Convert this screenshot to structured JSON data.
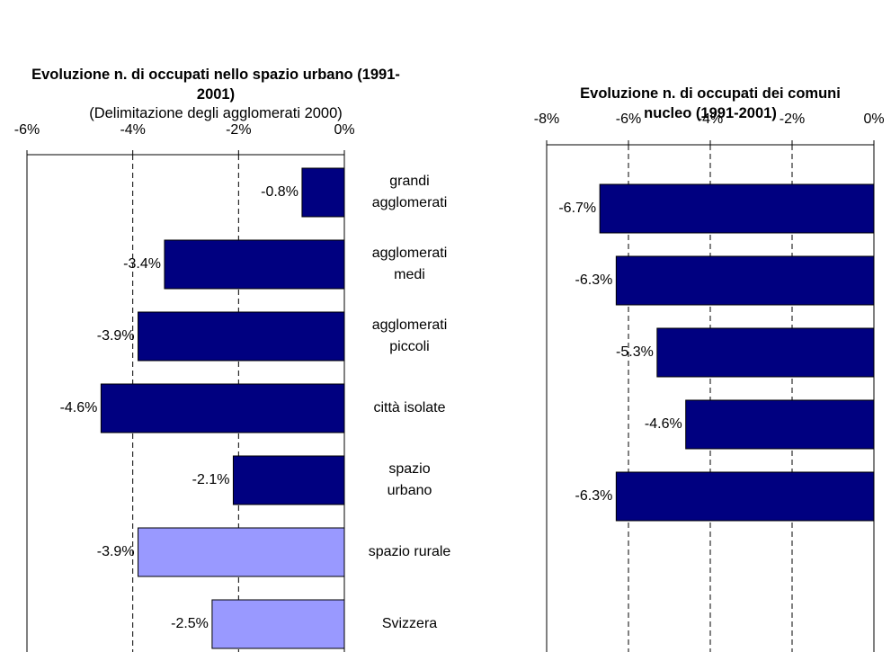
{
  "chart_data": [
    {
      "type": "bar",
      "title": "Evoluzione n. di occupati nello spazio urbano (1991-2001)",
      "subtitle": "(Delimitazione degli agglomerati 2000)",
      "categories": [
        "grandi agglomerati",
        "agglomerati medi",
        "agglomerati piccoli",
        "città isolate",
        "spazio urbano",
        "spazio rurale",
        "Svizzera"
      ],
      "values": [
        -0.8,
        -3.4,
        -3.9,
        -4.6,
        -2.1,
        -3.9,
        -2.5
      ],
      "value_labels": [
        "-0.8%",
        "-3.4%",
        "-3.9%",
        "-4.6%",
        "-2.1%",
        "-3.9%",
        "-2.5%"
      ],
      "colors": [
        "#000080",
        "#000080",
        "#000080",
        "#000080",
        "#000080",
        "#9999ff",
        "#9999ff"
      ],
      "xlim": [
        -6,
        0
      ],
      "xticks": [
        {
          "value": -6,
          "label": "-6%"
        },
        {
          "value": -4,
          "label": "-4%"
        },
        {
          "value": -2,
          "label": "-2%"
        },
        {
          "value": 0,
          "label": "0%"
        }
      ],
      "grid": true
    },
    {
      "type": "bar",
      "title": "Evoluzione n. di occupati dei comuni nucleo (1991-2001)",
      "categories": [
        null,
        null,
        null,
        null,
        null
      ],
      "values": [
        -6.7,
        -6.3,
        -5.3,
        -4.6,
        -6.3
      ],
      "value_labels": [
        "-6.7%",
        "-6.3%",
        "-5.3%",
        "-4.6%",
        "-6.3%"
      ],
      "colors": [
        "#000080",
        "#000080",
        "#000080",
        "#000080",
        "#000080"
      ],
      "xlim": [
        -8,
        0
      ],
      "xticks": [
        {
          "value": -8,
          "label": "-8%"
        },
        {
          "value": -6,
          "label": "-6%"
        },
        {
          "value": -4,
          "label": "-4%"
        },
        {
          "value": -2,
          "label": "-2%"
        },
        {
          "value": 0,
          "label": "0%"
        }
      ],
      "grid": true
    }
  ]
}
